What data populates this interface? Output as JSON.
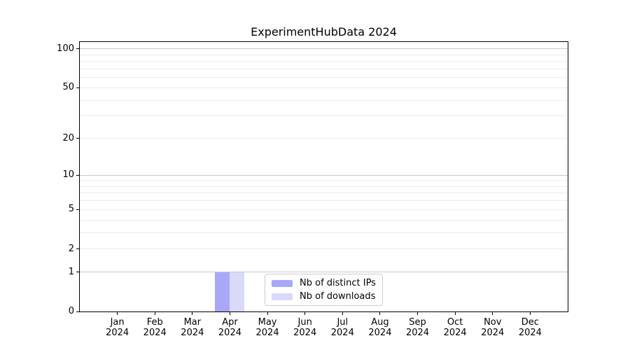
{
  "title": "ExperimentHubData 2024",
  "chart_data": {
    "type": "bar",
    "title": "ExperimentHubData 2024",
    "categories": [
      "Jan 2024",
      "Feb 2024",
      "Mar 2024",
      "Apr 2024",
      "May 2024",
      "Jun 2024",
      "Jul 2024",
      "Aug 2024",
      "Sep 2024",
      "Oct 2024",
      "Nov 2024",
      "Dec 2024"
    ],
    "series": [
      {
        "name": "Nb of distinct IPs",
        "color": "#a8a8f7",
        "values": [
          0,
          0,
          0,
          1,
          0,
          0,
          0,
          0,
          0,
          0,
          0,
          0
        ]
      },
      {
        "name": "Nb of downloads",
        "color": "#d9d9f9",
        "values": [
          0,
          0,
          0,
          1,
          0,
          0,
          0,
          0,
          0,
          0,
          0,
          0
        ]
      }
    ],
    "xlabel": "",
    "ylabel": "",
    "yscale": "log1p",
    "ylim": [
      0,
      113
    ],
    "y_tick_values": [
      0,
      1,
      2,
      5,
      10,
      20,
      50,
      100
    ],
    "y_tick_labels": [
      "0",
      "1",
      "2",
      "5",
      "10",
      "20",
      "50",
      "100"
    ],
    "y_decade_gridlines": [
      1,
      10,
      100
    ],
    "y_minor_gridlines": [
      2,
      3,
      4,
      5,
      6,
      7,
      8,
      9,
      20,
      30,
      40,
      50,
      60,
      70,
      80,
      90
    ],
    "grid": true,
    "legend_position": "lower center"
  },
  "colors": {
    "background": "#ffffff",
    "axis": "#000000",
    "decade_gridline": "#c8c8c8",
    "minor_gridline": "#ebebeb",
    "legend_border": "#cccccc",
    "text": "#000000"
  }
}
